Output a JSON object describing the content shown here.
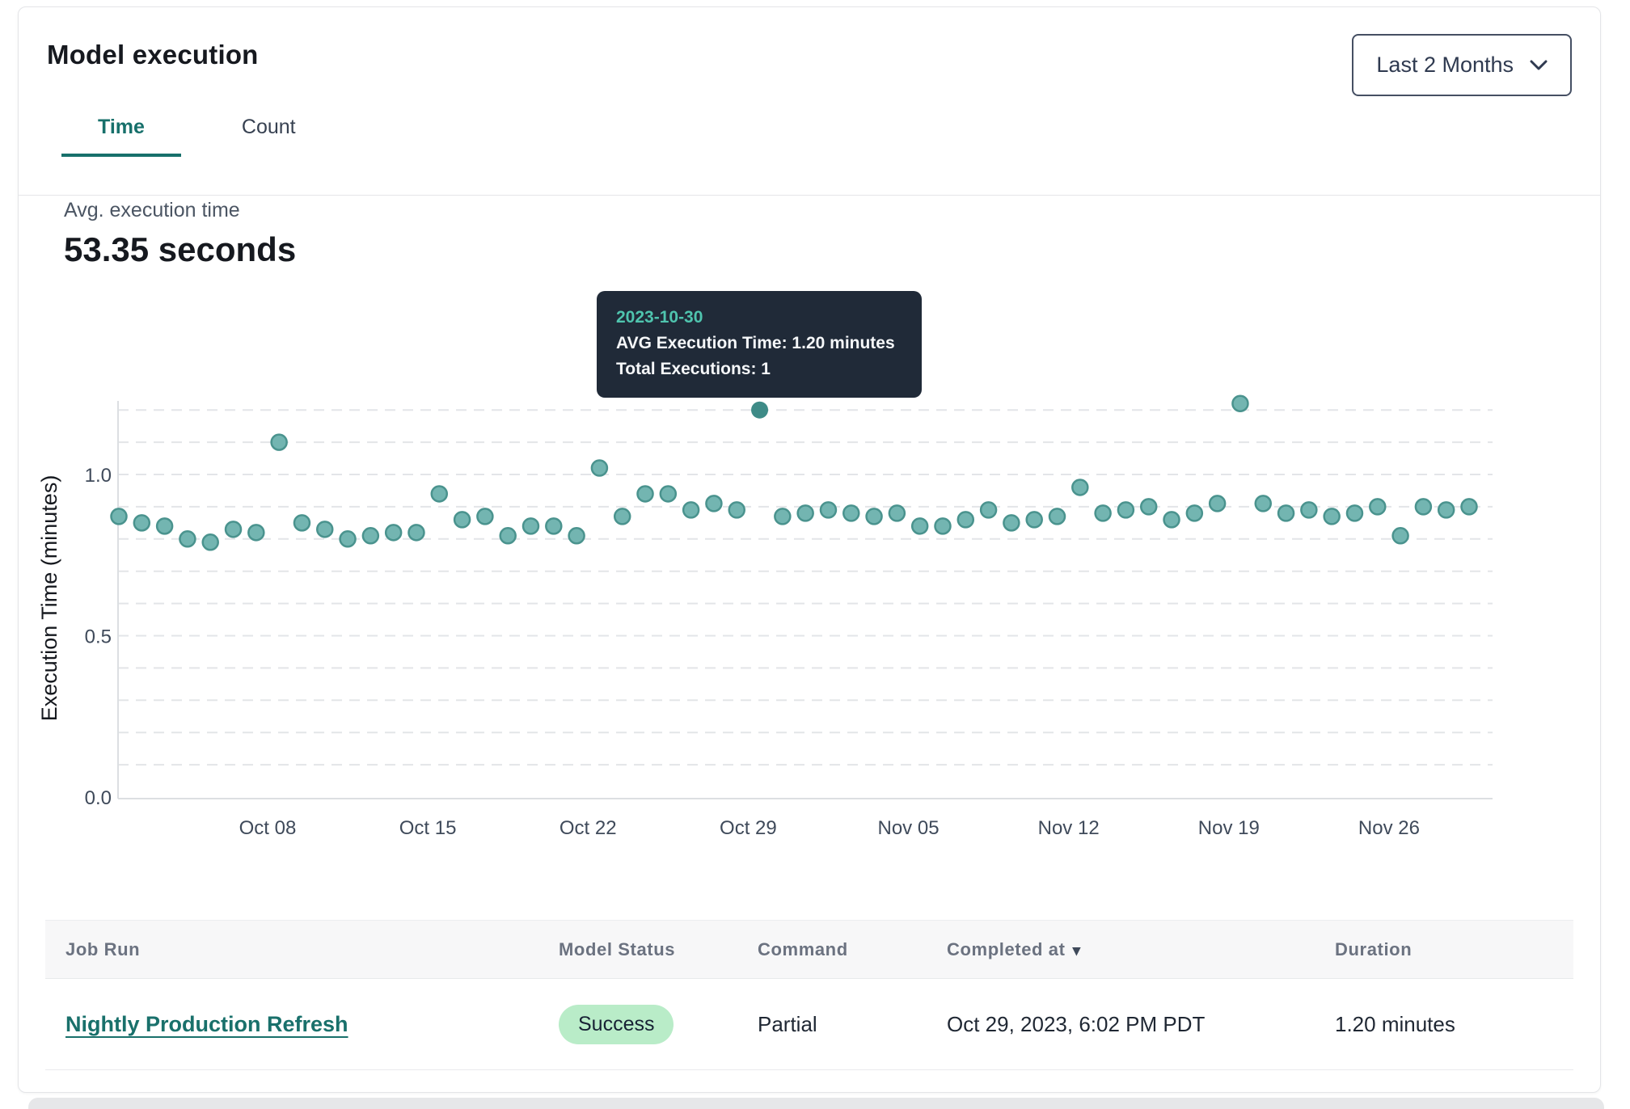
{
  "card": {
    "title": "Model execution"
  },
  "filter": {
    "label": "Last 2 Months"
  },
  "icons": {
    "dropdown_chevron": "chevron-down",
    "sort_indicator": "▾"
  },
  "tabs": [
    {
      "label": "Time",
      "active": true
    },
    {
      "label": "Count",
      "active": false
    }
  ],
  "metric": {
    "label": "Avg. execution time",
    "value": "53.35 seconds"
  },
  "tooltip": {
    "date": "2023-10-30",
    "line1": "AVG Execution Time: 1.20 minutes",
    "line2": "Total Executions: 1"
  },
  "chart_data": {
    "type": "scatter",
    "title": "",
    "xlabel": "",
    "ylabel": "Execution Time (minutes)",
    "ylim": [
      0,
      1.26
    ],
    "grid": "horizontal dashed every 0.1",
    "legend": "none",
    "y_ticks": [
      "0.0",
      "0.5",
      "1.0"
    ],
    "x_tick_labels": [
      "Oct 08",
      "Oct 15",
      "Oct 22",
      "Oct 29",
      "Nov 05",
      "Nov 12",
      "Nov 19",
      "Nov 26"
    ],
    "x_tick_indices": [
      6,
      13,
      20,
      27,
      34,
      41,
      48,
      55
    ],
    "highlight_date": "2023-10-30",
    "highlight_value": 1.2,
    "colors": {
      "dot_fill": "#73b5b1",
      "dot_stroke": "#4a938e",
      "dot_highlight": "#3e8b87",
      "grid": "#e3e5e8",
      "spine": "#dcdfe2",
      "tick_text": "#3f4a5a",
      "axis_title": "#16191f"
    },
    "x": [
      "2023-10-02",
      "2023-10-03",
      "2023-10-04",
      "2023-10-05",
      "2023-10-06",
      "2023-10-07",
      "2023-10-08",
      "2023-10-09",
      "2023-10-10",
      "2023-10-11",
      "2023-10-12",
      "2023-10-13",
      "2023-10-14",
      "2023-10-15",
      "2023-10-16",
      "2023-10-17",
      "2023-10-18",
      "2023-10-19",
      "2023-10-20",
      "2023-10-21",
      "2023-10-22",
      "2023-10-23",
      "2023-10-24",
      "2023-10-25",
      "2023-10-26",
      "2023-10-27",
      "2023-10-28",
      "2023-10-29",
      "2023-10-30",
      "2023-10-31",
      "2023-11-01",
      "2023-11-02",
      "2023-11-03",
      "2023-11-04",
      "2023-11-05",
      "2023-11-06",
      "2023-11-07",
      "2023-11-08",
      "2023-11-09",
      "2023-11-10",
      "2023-11-11",
      "2023-11-12",
      "2023-11-13",
      "2023-11-14",
      "2023-11-15",
      "2023-11-16",
      "2023-11-17",
      "2023-11-18",
      "2023-11-19",
      "2023-11-20",
      "2023-11-21",
      "2023-11-22",
      "2023-11-23",
      "2023-11-24",
      "2023-11-25",
      "2023-11-26",
      "2023-11-27",
      "2023-11-28",
      "2023-11-29",
      "2023-11-30"
    ],
    "values": [
      0.87,
      0.85,
      0.84,
      0.8,
      0.79,
      0.83,
      0.82,
      1.1,
      0.85,
      0.83,
      0.8,
      0.81,
      0.82,
      0.82,
      0.94,
      0.86,
      0.87,
      0.81,
      0.84,
      0.84,
      0.81,
      1.02,
      0.87,
      0.94,
      0.94,
      0.89,
      0.91,
      0.89,
      1.2,
      0.87,
      0.88,
      0.89,
      0.88,
      0.87,
      0.88,
      0.84,
      0.84,
      0.86,
      0.89,
      0.85,
      0.86,
      0.87,
      0.96,
      0.88,
      0.89,
      0.9,
      0.86,
      0.88,
      0.91,
      1.22,
      0.91,
      0.88,
      0.89,
      0.87,
      0.88,
      0.9,
      0.81,
      0.9,
      0.89,
      0.9
    ]
  },
  "table": {
    "headers": [
      "Job Run",
      "Model Status",
      "Command",
      "Completed at",
      "Duration"
    ],
    "sorted_column": "Completed at",
    "rows": [
      {
        "job_run": "Nightly Production Refresh",
        "model_status": "Success",
        "command": "Partial",
        "completed_at": "Oct 29, 2023, 6:02 PM PDT",
        "duration": "1.20 minutes"
      }
    ]
  }
}
